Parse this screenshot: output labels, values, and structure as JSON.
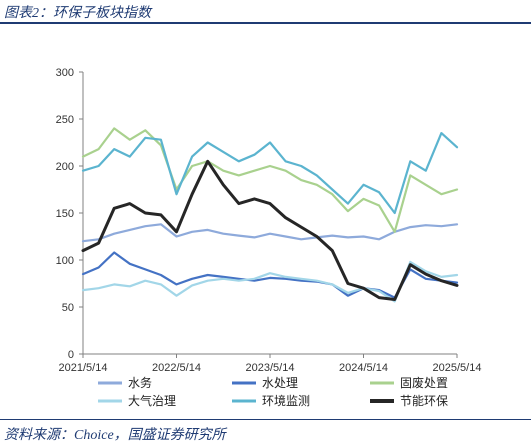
{
  "figure": {
    "title": "图表2：环保子板块指数",
    "source": "资料来源：Choice，国盛证券研究所"
  },
  "chart_data": {
    "type": "line",
    "title": "",
    "xlabel": "",
    "ylabel": "",
    "ylim": [
      0,
      300
    ],
    "yticks": [
      0,
      50,
      100,
      150,
      200,
      250,
      300
    ],
    "xticks": [
      "2021/5/14",
      "2022/5/14",
      "2023/5/14",
      "2024/5/14",
      "2025/5/14"
    ],
    "grid": false,
    "legend_position": "bottom",
    "x": [
      "2021/5/14",
      "2021/7/14",
      "2021/9/14",
      "2021/11/14",
      "2022/1/14",
      "2022/3/14",
      "2022/5/14",
      "2022/7/14",
      "2022/9/14",
      "2022/11/14",
      "2023/1/14",
      "2023/3/14",
      "2023/5/14",
      "2023/7/14",
      "2023/9/14",
      "2023/11/14",
      "2024/1/14",
      "2024/3/14",
      "2024/5/14",
      "2024/7/14",
      "2024/9/14",
      "2024/11/14",
      "2025/1/14",
      "2025/3/14",
      "2025/5/14"
    ],
    "series": [
      {
        "name": "水务",
        "color": "#8eaadb",
        "values": [
          120,
          122,
          128,
          132,
          136,
          138,
          125,
          130,
          132,
          128,
          126,
          124,
          128,
          125,
          122,
          124,
          126,
          124,
          125,
          122,
          130,
          135,
          137,
          136,
          138
        ]
      },
      {
        "name": "水处理",
        "color": "#4472c4",
        "values": [
          85,
          92,
          108,
          96,
          90,
          84,
          74,
          80,
          84,
          82,
          80,
          78,
          81,
          80,
          78,
          77,
          74,
          62,
          70,
          68,
          60,
          90,
          80,
          78,
          76
        ]
      },
      {
        "name": "固废处置",
        "color": "#a9d18e",
        "values": [
          210,
          218,
          240,
          228,
          238,
          222,
          175,
          200,
          205,
          195,
          190,
          195,
          200,
          195,
          185,
          180,
          170,
          152,
          165,
          158,
          130,
          190,
          180,
          170,
          175
        ]
      },
      {
        "name": "大气治理",
        "color": "#a2d6e8",
        "values": [
          68,
          70,
          74,
          72,
          78,
          74,
          62,
          73,
          78,
          80,
          78,
          80,
          86,
          82,
          80,
          78,
          74,
          65,
          70,
          67,
          56,
          98,
          88,
          82,
          84
        ]
      },
      {
        "name": "环境监测",
        "color": "#5bb4cf",
        "values": [
          195,
          200,
          218,
          210,
          230,
          228,
          170,
          210,
          225,
          215,
          205,
          212,
          225,
          205,
          200,
          190,
          175,
          160,
          180,
          172,
          150,
          205,
          195,
          235,
          220
        ]
      },
      {
        "name": "节能环保",
        "color": "#262626",
        "values": [
          110,
          118,
          155,
          160,
          150,
          148,
          130,
          170,
          205,
          180,
          160,
          165,
          160,
          145,
          135,
          125,
          110,
          75,
          70,
          60,
          58,
          95,
          85,
          78,
          73
        ]
      }
    ]
  }
}
